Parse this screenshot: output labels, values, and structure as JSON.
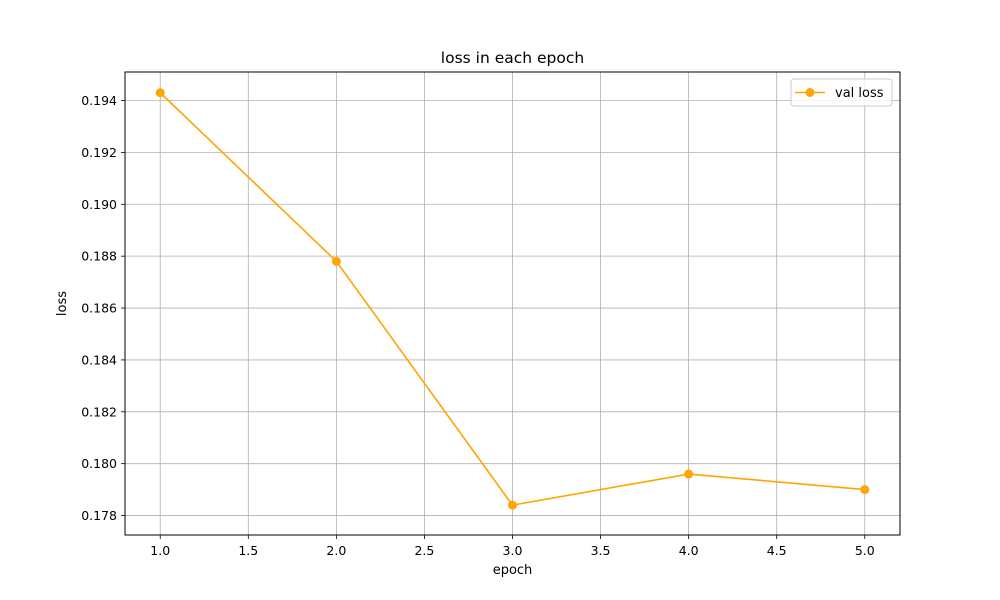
{
  "chart_data": {
    "type": "line",
    "title": "loss in each epoch",
    "xlabel": "epoch",
    "ylabel": "loss",
    "xlim": [
      0.8,
      5.2
    ],
    "ylim": [
      0.17725,
      0.1951
    ],
    "x_ticks": [
      1.0,
      1.5,
      2.0,
      2.5,
      3.0,
      3.5,
      4.0,
      4.5,
      5.0
    ],
    "x_tick_labels": [
      "1.0",
      "1.5",
      "2.0",
      "2.5",
      "3.0",
      "3.5",
      "4.0",
      "4.5",
      "5.0"
    ],
    "y_ticks": [
      0.178,
      0.18,
      0.182,
      0.184,
      0.186,
      0.188,
      0.19,
      0.192,
      0.194
    ],
    "y_tick_labels": [
      "0.178",
      "0.180",
      "0.182",
      "0.184",
      "0.186",
      "0.188",
      "0.190",
      "0.192",
      "0.194"
    ],
    "grid": true,
    "legend_position": "top-right",
    "series": [
      {
        "name": "val loss",
        "color": "#ffa500",
        "marker": "circle",
        "x": [
          1,
          2,
          3,
          4,
          5
        ],
        "y": [
          0.1943,
          0.1878,
          0.1784,
          0.1796,
          0.179
        ]
      }
    ]
  }
}
